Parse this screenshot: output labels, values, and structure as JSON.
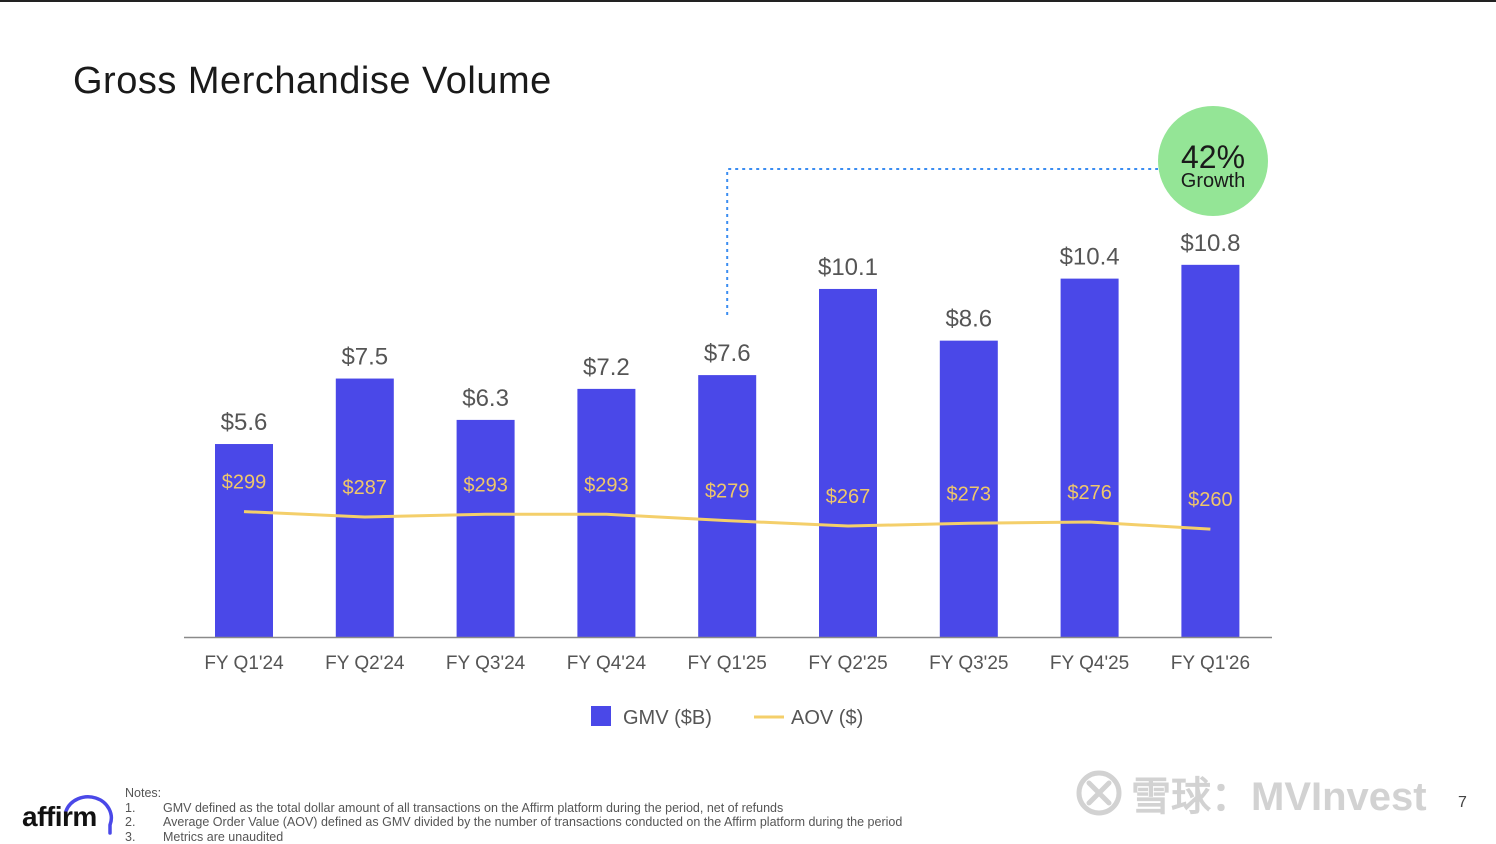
{
  "page": {
    "title": "Gross Merchandise Volume",
    "page_number": "7"
  },
  "colors": {
    "bar": "#4a48e8",
    "line": "#f4cf6a",
    "badge": "#94e596",
    "connector": "#3b8df2",
    "axis": "#8a8a8a",
    "bar_label": "#555555",
    "line_label": "#efc76a"
  },
  "growth_badge": {
    "value": "42%",
    "label": "Growth"
  },
  "chart_data": {
    "type": "bar",
    "title": "Gross Merchandise Volume",
    "categories": [
      "FY Q1'24",
      "FY Q2'24",
      "FY Q3'24",
      "FY Q4'24",
      "FY Q1'25",
      "FY Q2'25",
      "FY Q3'25",
      "FY Q4'25",
      "FY Q1'26"
    ],
    "series": [
      {
        "name": "GMV ($B)",
        "kind": "bar",
        "values": [
          5.6,
          7.5,
          6.3,
          7.2,
          7.6,
          10.1,
          8.6,
          10.4,
          10.8
        ],
        "labels": [
          "$5.6",
          "$7.5",
          "$6.3",
          "$7.2",
          "$7.6",
          "$10.1",
          "$8.6",
          "$10.4",
          "$10.8"
        ]
      },
      {
        "name": "AOV ($)",
        "kind": "line",
        "values": [
          299,
          287,
          293,
          293,
          279,
          267,
          273,
          276,
          260
        ],
        "labels": [
          "$299",
          "$287",
          "$293",
          "$293",
          "$279",
          "$267",
          "$273",
          "$276",
          "$260"
        ]
      }
    ],
    "ylim": [
      0,
      11
    ],
    "legend": [
      "GMV ($B)",
      "AOV ($)"
    ],
    "legend_position": "bottom-center",
    "annotation": {
      "from": "FY Q1'25",
      "to": "FY Q1'26",
      "text": "42% Growth"
    }
  },
  "notes": {
    "heading": "Notes:",
    "items": [
      {
        "num": "1.",
        "text": "GMV defined as the total dollar amount of all transactions on the Affirm platform during the period, net of refunds"
      },
      {
        "num": "2.",
        "text": "Average Order Value (AOV) defined as GMV divided by the number of transactions conducted on the Affirm platform during the period"
      },
      {
        "num": "3.",
        "text": "Metrics are unaudited"
      }
    ]
  },
  "logo": {
    "text": "affirm"
  },
  "watermark": {
    "text": "雪球：MVInvest"
  }
}
